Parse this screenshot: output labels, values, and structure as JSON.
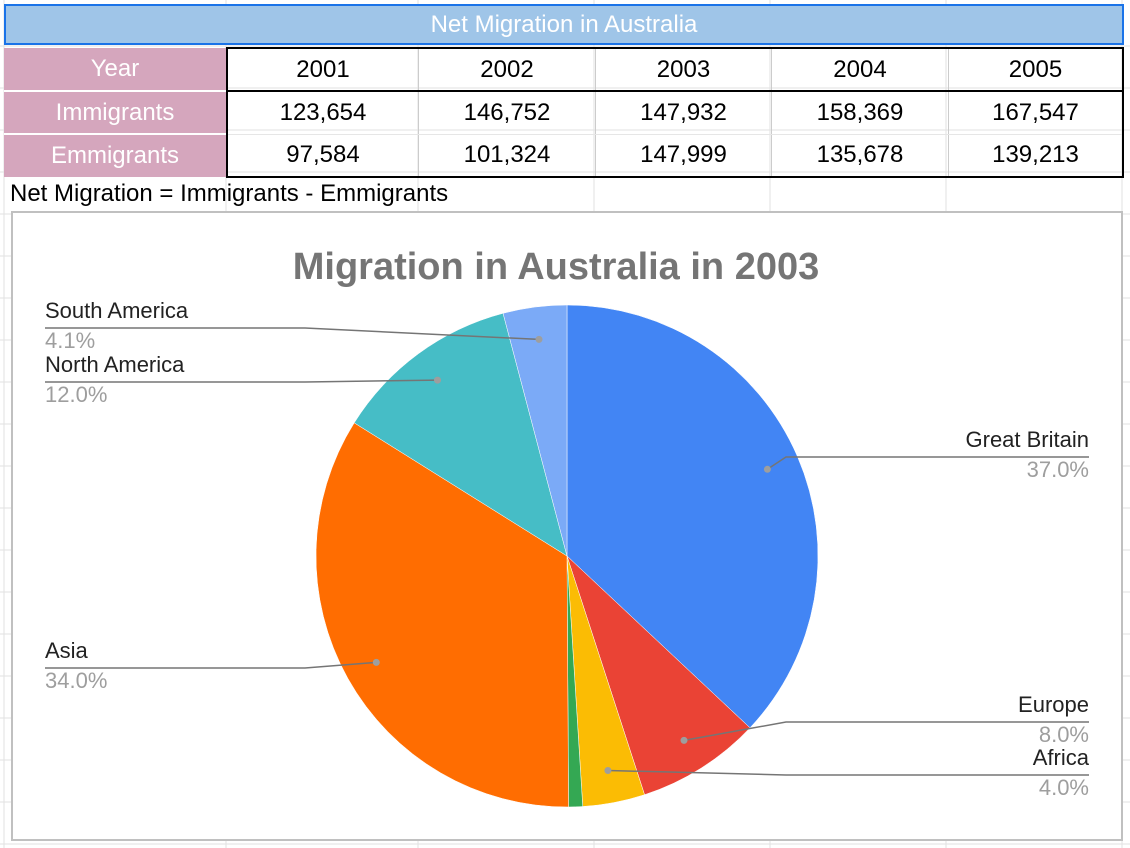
{
  "table": {
    "title": "Net Migration in Australia",
    "header_label": "Year",
    "years": [
      "2001",
      "2002",
      "2003",
      "2004",
      "2005"
    ],
    "rows": [
      {
        "label": "Immigrants",
        "values": [
          "123,654",
          "146,752",
          "147,932",
          "158,369",
          "167,547"
        ]
      },
      {
        "label": "Emmigrants",
        "values": [
          "97,584",
          "101,324",
          "147,999",
          "135,678",
          "139,213"
        ]
      }
    ]
  },
  "note": "Net Migration = Immigrants - Emmigrants",
  "chart_data": {
    "type": "pie",
    "title": "Migration in Australia in 2003",
    "start_angle_deg": 0,
    "direction": "clockwise",
    "slices": [
      {
        "label": "Great Britain",
        "value": 37.0,
        "percent_label": "37.0%",
        "color": "#4285f4",
        "label_side": "right"
      },
      {
        "label": "Europe",
        "value": 8.0,
        "percent_label": "8.0%",
        "color": "#ea4335",
        "label_side": "right"
      },
      {
        "label": "Africa",
        "value": 4.0,
        "percent_label": "4.0%",
        "color": "#fbbc04",
        "label_side": "right"
      },
      {
        "label": "",
        "value": 0.9,
        "percent_label": "",
        "color": "#34a853",
        "label_side": "none"
      },
      {
        "label": "Asia",
        "value": 34.0,
        "percent_label": "34.0%",
        "color": "#ff6d01",
        "label_side": "left"
      },
      {
        "label": "North America",
        "value": 12.0,
        "percent_label": "12.0%",
        "color": "#46bdc6",
        "label_side": "left"
      },
      {
        "label": "South America",
        "value": 4.1,
        "percent_label": "4.1%",
        "color": "#7baaf7",
        "label_side": "left"
      }
    ],
    "legend": "none"
  },
  "colors": {
    "title_bg": "#9fc5e8",
    "header_bg": "#d5a6bd",
    "selection": "#1a73e8"
  }
}
